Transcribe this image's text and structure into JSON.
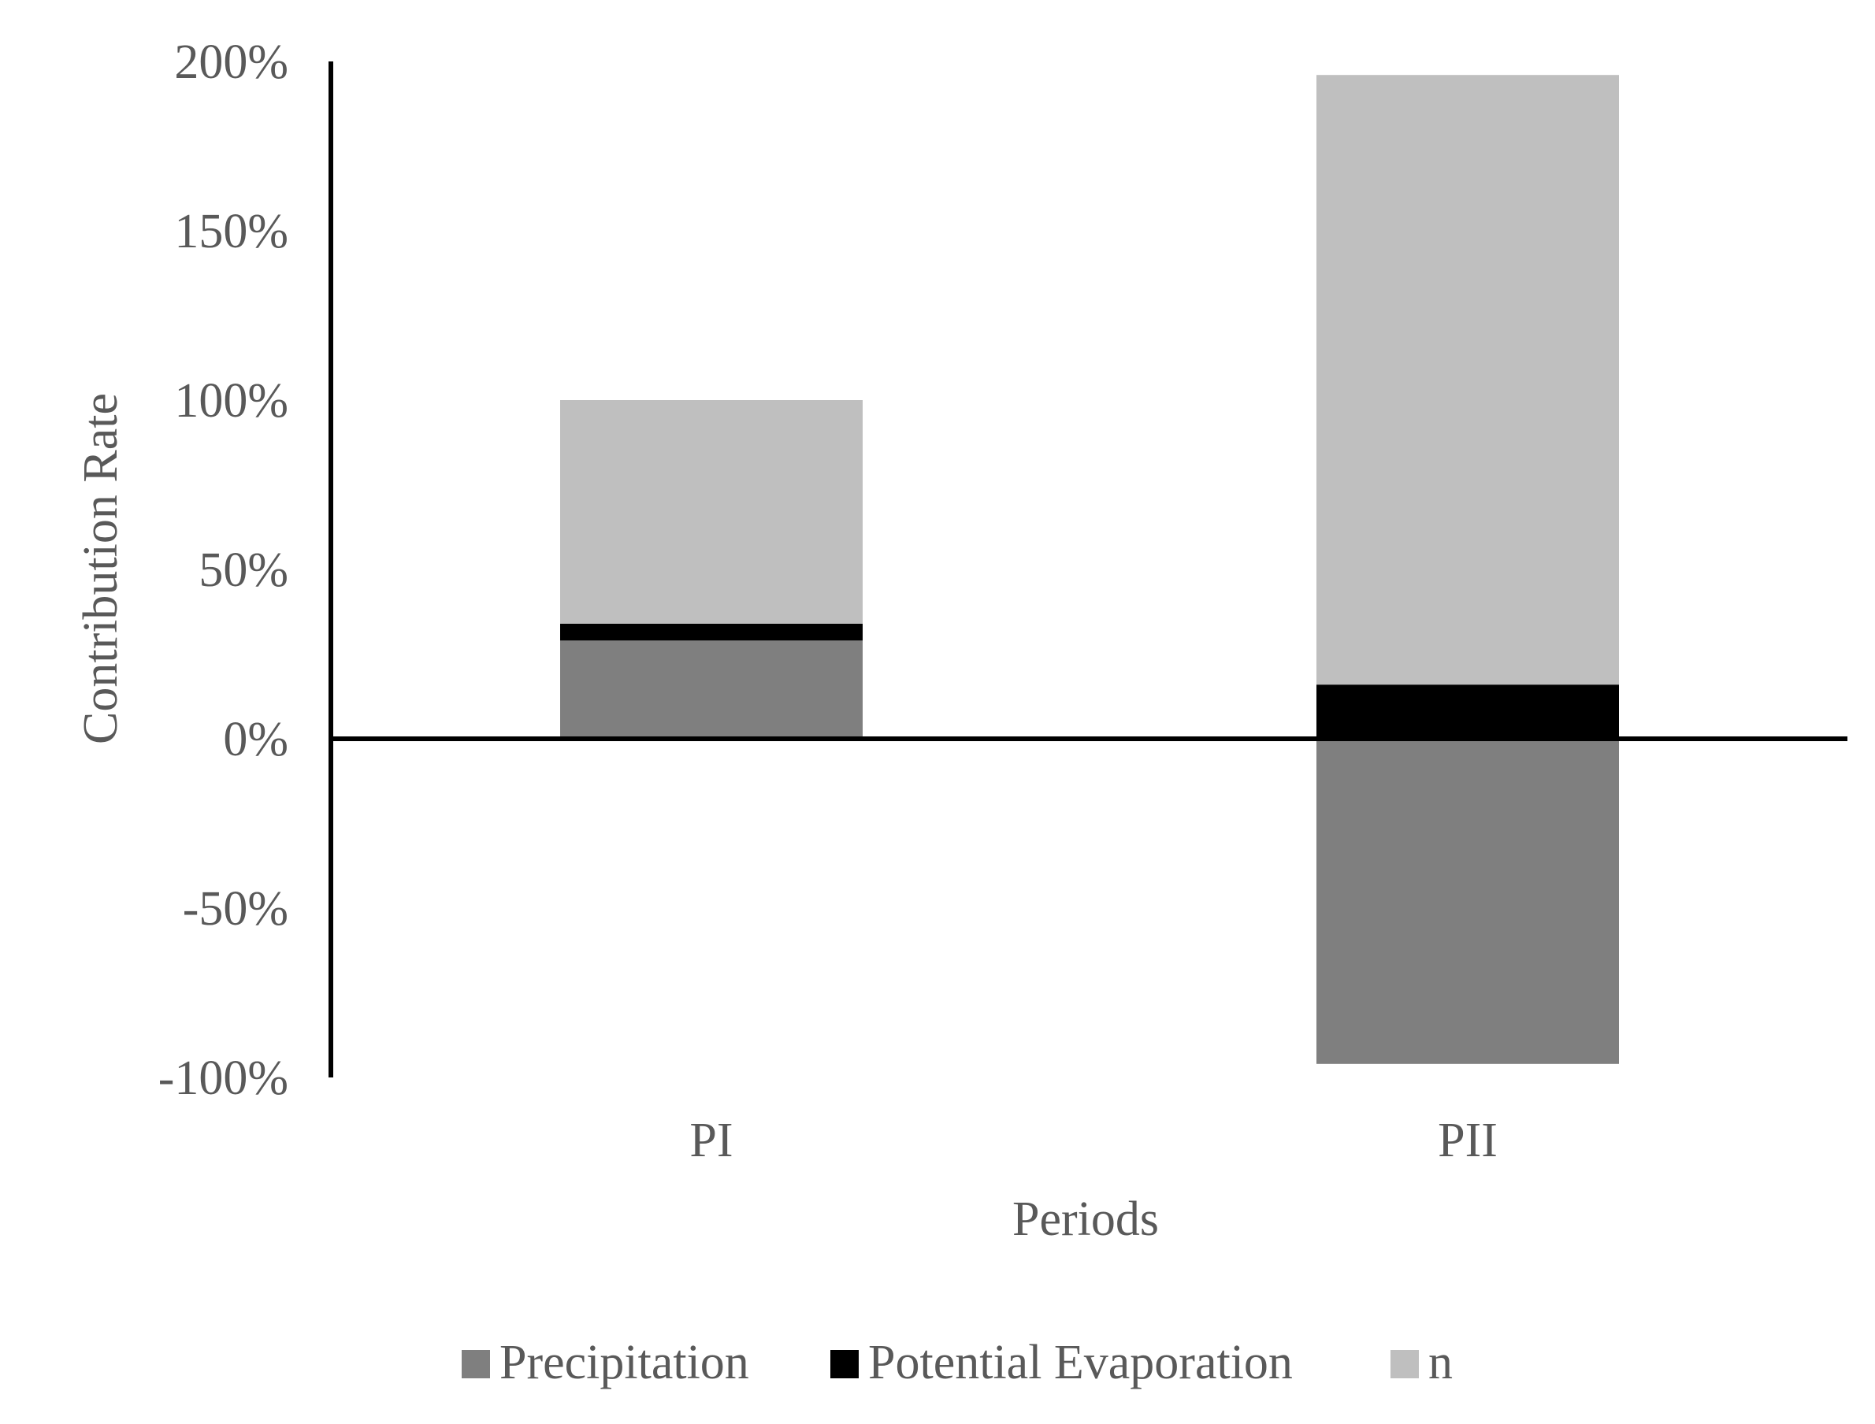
{
  "chart_data": {
    "type": "bar",
    "stacked": true,
    "title": "",
    "xlabel": "Periods",
    "ylabel": "Contribution Rate",
    "categories": [
      "PI",
      "PII"
    ],
    "ylim": [
      -1.0,
      2.0
    ],
    "yticks": [
      -1.0,
      -0.5,
      0.0,
      0.5,
      1.0,
      1.5,
      2.0
    ],
    "ytick_labels": [
      "-100%",
      "-50%",
      "0%",
      "50%",
      "100%",
      "150%",
      "200%"
    ],
    "series": [
      {
        "name": "Precipitation",
        "color": "#7f7f7f",
        "values": [
          0.29,
          -0.96
        ]
      },
      {
        "name": "Potential Evaporation",
        "color": "#000000",
        "values": [
          0.05,
          0.16
        ]
      },
      {
        "name": "n",
        "color": "#bfbfbf",
        "values": [
          0.66,
          1.8
        ]
      }
    ],
    "legend_position": "bottom",
    "grid": false
  }
}
